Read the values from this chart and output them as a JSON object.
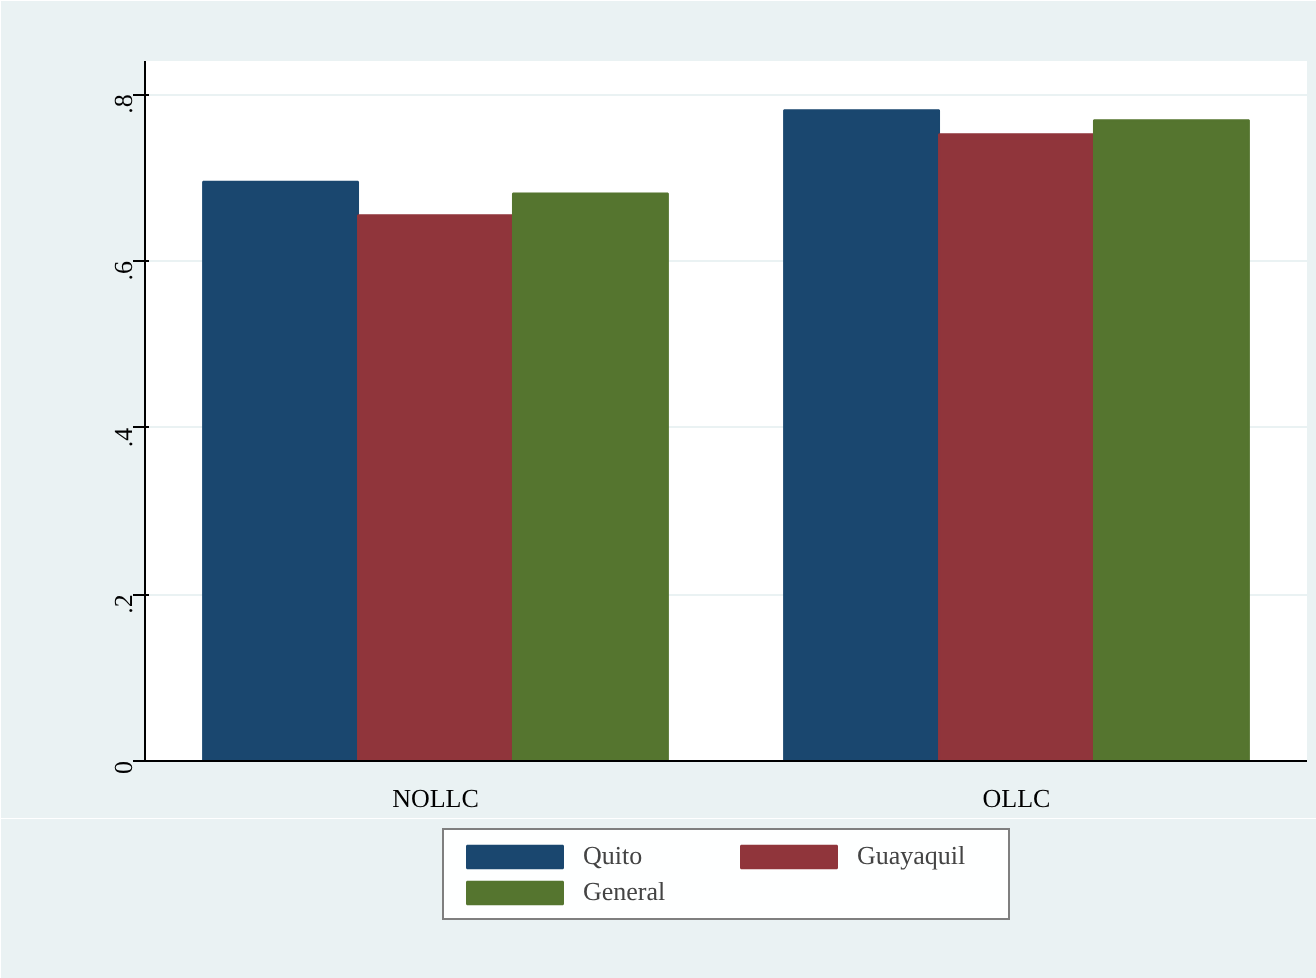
{
  "chart_data": {
    "type": "bar",
    "categories": [
      "NOLLC",
      "OLLC"
    ],
    "series": [
      {
        "name": "Quito",
        "color": "#1a476f",
        "values": [
          0.695,
          0.781
        ]
      },
      {
        "name": "Guayaquil",
        "color": "#90353b",
        "values": [
          0.655,
          0.752
        ]
      },
      {
        "name": "General",
        "color": "#55752f",
        "values": [
          0.681,
          0.769
        ]
      }
    ],
    "ylim": [
      0,
      0.84
    ],
    "yticks": [
      {
        "value": 0,
        "label": "0"
      },
      {
        "value": 0.2,
        "label": ".2"
      },
      {
        "value": 0.4,
        "label": ".4"
      },
      {
        "value": 0.6,
        "label": ".6"
      },
      {
        "value": 0.8,
        "label": ".8"
      }
    ],
    "grid": "y",
    "legend": "bottom"
  }
}
